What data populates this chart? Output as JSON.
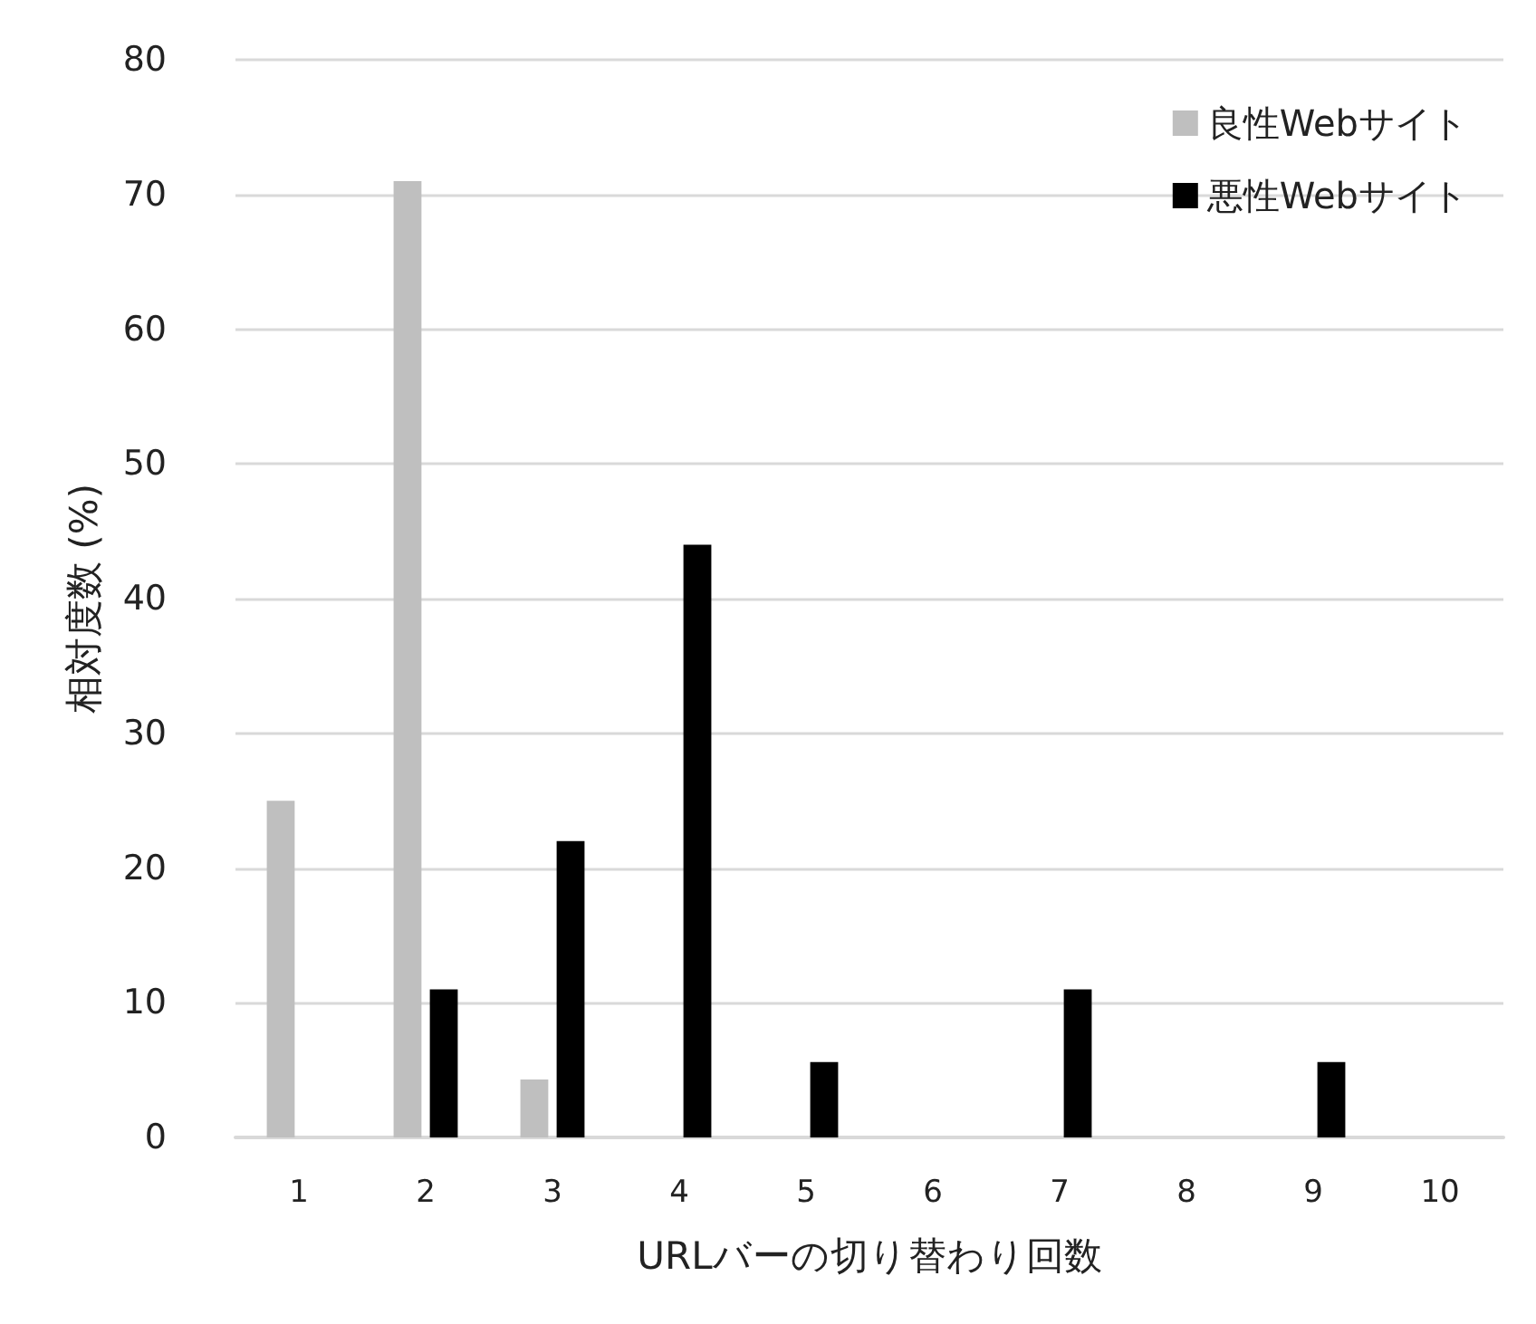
{
  "chart_data": {
    "type": "bar",
    "xlabel": "URLバーの切り替わり回数",
    "ylabel": "相対度数 (%)",
    "categories": [
      "1",
      "2",
      "3",
      "4",
      "5",
      "6",
      "7",
      "8",
      "9",
      "10"
    ],
    "series": [
      {
        "name": "良性Webサイト",
        "color": "#bfbfbf",
        "values": [
          25,
          71,
          4.3,
          0,
          0,
          0,
          0,
          0,
          0,
          0
        ]
      },
      {
        "name": "悪性Webサイト",
        "color": "#000000",
        "values": [
          0,
          11,
          22,
          44,
          5.6,
          0,
          11,
          0,
          5.6,
          0
        ]
      }
    ],
    "ylim": [
      0,
      80
    ],
    "yticks": [
      0,
      10,
      20,
      30,
      40,
      50,
      60,
      70,
      80
    ],
    "grid": "y",
    "legend": "top right"
  }
}
